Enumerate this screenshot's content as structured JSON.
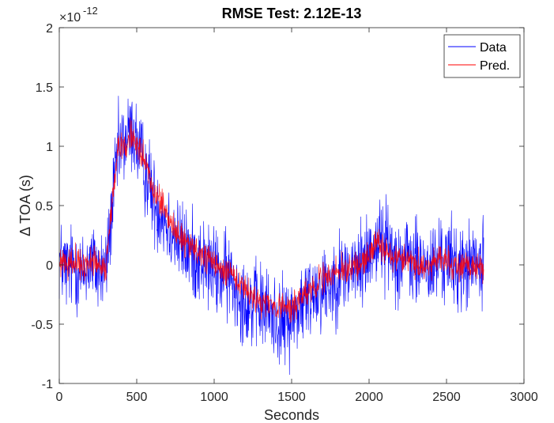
{
  "chart_data": {
    "type": "line",
    "title": "RMSE Test:  2.12E-13",
    "xlabel": "Seconds",
    "ylabel": "Δ TOA (s)",
    "y_exponent_label": "×10",
    "y_exponent_value": "-12",
    "xlim": [
      0,
      3000
    ],
    "ylim": [
      -1,
      2
    ],
    "xticks": [
      0,
      500,
      1000,
      1500,
      2000,
      2500,
      3000
    ],
    "xtick_labels": [
      "0",
      "500",
      "1000",
      "1500",
      "2000",
      "2500",
      "3000"
    ],
    "yticks": [
      -1,
      -0.5,
      0,
      0.5,
      1,
      1.5,
      2
    ],
    "ytick_labels": [
      "-1",
      "-0.5",
      "0",
      "0.5",
      "1",
      "1.5",
      "2"
    ],
    "grid": false,
    "legend_position": "top-right",
    "colors": {
      "data": "#0000ff",
      "pred": "#ff0000",
      "axis": "#262626"
    },
    "series": [
      {
        "name": "Data",
        "color": "#0000ff",
        "x": [
          0,
          50,
          100,
          150,
          200,
          250,
          300,
          320,
          350,
          380,
          400,
          430,
          460,
          480,
          500,
          540,
          580,
          620,
          660,
          700,
          750,
          800,
          850,
          900,
          950,
          1000,
          1050,
          1100,
          1150,
          1200,
          1250,
          1300,
          1350,
          1400,
          1450,
          1500,
          1550,
          1600,
          1650,
          1700,
          1750,
          1800,
          1850,
          1900,
          1950,
          2000,
          2050,
          2100,
          2150,
          2200,
          2250,
          2300,
          2350,
          2400,
          2450,
          2500,
          2550,
          2600,
          2650,
          2700,
          2740
        ],
        "y": [
          0.05,
          -0.05,
          0.0,
          -0.1,
          0.05,
          -0.05,
          -0.05,
          0.2,
          0.6,
          0.95,
          1.0,
          1.05,
          1.1,
          1.15,
          1.0,
          0.85,
          0.7,
          0.5,
          0.45,
          0.35,
          0.25,
          0.15,
          0.1,
          0.05,
          0.0,
          -0.05,
          -0.1,
          -0.1,
          -0.2,
          -0.3,
          -0.35,
          -0.35,
          -0.4,
          -0.45,
          -0.5,
          -0.45,
          -0.35,
          -0.3,
          -0.2,
          -0.2,
          -0.15,
          -0.1,
          -0.05,
          -0.05,
          0.0,
          0.1,
          0.2,
          0.2,
          0.1,
          0.05,
          0.05,
          0.0,
          0.0,
          -0.05,
          0.05,
          0.05,
          0.0,
          -0.05,
          0.0,
          0.0,
          -0.05
        ],
        "noise": 0.28
      },
      {
        "name": "Pred.",
        "color": "#ff0000",
        "x": [
          0,
          50,
          100,
          150,
          200,
          250,
          300,
          320,
          350,
          380,
          400,
          430,
          460,
          480,
          500,
          540,
          580,
          620,
          660,
          700,
          750,
          800,
          850,
          900,
          950,
          1000,
          1050,
          1100,
          1150,
          1200,
          1250,
          1300,
          1350,
          1400,
          1450,
          1500,
          1550,
          1600,
          1650,
          1700,
          1750,
          1800,
          1850,
          1900,
          1950,
          2000,
          2050,
          2100,
          2150,
          2200,
          2250,
          2300,
          2350,
          2400,
          2450,
          2500,
          2550,
          2600,
          2650,
          2700,
          2740
        ],
        "y": [
          0.0,
          0.0,
          0.05,
          -0.05,
          0.05,
          0.0,
          -0.05,
          0.25,
          0.65,
          1.0,
          1.0,
          1.0,
          1.1,
          1.1,
          1.0,
          0.9,
          0.75,
          0.6,
          0.5,
          0.4,
          0.3,
          0.2,
          0.15,
          0.1,
          0.05,
          0.0,
          -0.05,
          -0.05,
          -0.15,
          -0.22,
          -0.28,
          -0.3,
          -0.32,
          -0.35,
          -0.38,
          -0.35,
          -0.3,
          -0.22,
          -0.18,
          -0.12,
          -0.1,
          -0.05,
          -0.05,
          0.0,
          0.0,
          0.1,
          0.2,
          0.15,
          0.05,
          0.05,
          0.05,
          0.0,
          0.0,
          0.0,
          0.05,
          0.05,
          0.0,
          0.0,
          0.0,
          0.0,
          -0.05
        ],
        "noise": 0.09
      }
    ]
  }
}
